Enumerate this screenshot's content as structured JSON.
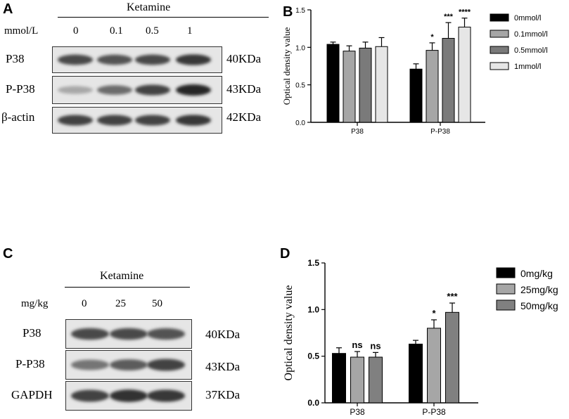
{
  "panels": {
    "a": {
      "letter": "A",
      "treatment": "Ketamine",
      "unit_label": "mmol/L",
      "lanes": [
        "0",
        "0.1",
        "0.5",
        "1"
      ],
      "rows": [
        {
          "label": "P38",
          "mw": "40KDa",
          "intensities": [
            0.8,
            0.75,
            0.8,
            0.9
          ]
        },
        {
          "label": "P-P38",
          "mw": "43KDa",
          "intensities": [
            0.25,
            0.6,
            0.85,
            1.0
          ]
        },
        {
          "label": "β-actin",
          "mw": "42KDa",
          "intensities": [
            0.85,
            0.85,
            0.85,
            0.9
          ]
        }
      ]
    },
    "b": {
      "letter": "B"
    },
    "c": {
      "letter": "C",
      "treatment": "Ketamine",
      "unit_label": "mg/kg",
      "lanes": [
        "0",
        "25",
        "50"
      ],
      "rows": [
        {
          "label": "P38",
          "mw": "40KDa",
          "intensities": [
            0.8,
            0.8,
            0.75
          ]
        },
        {
          "label": "P-P38",
          "mw": "43KDa",
          "intensities": [
            0.55,
            0.7,
            0.85
          ]
        },
        {
          "label": "GAPDH",
          "mw": "37KDa",
          "intensities": [
            0.85,
            0.95,
            0.9
          ]
        }
      ]
    },
    "d": {
      "letter": "D"
    }
  },
  "chart_data": [
    {
      "type": "bar",
      "ylabel": "Optical density value",
      "categories": [
        "P38",
        "P-P38"
      ],
      "ylim": [
        0,
        1.5
      ],
      "yticks": [
        "0.0",
        "0.5",
        "1.0",
        "1.5"
      ],
      "series": [
        {
          "name": "0mmol/l",
          "color": "#000000",
          "values": [
            1.04,
            0.71
          ],
          "errors": [
            0.03,
            0.07
          ],
          "sig": [
            "",
            ""
          ]
        },
        {
          "name": "0.1mmol/l",
          "color": "#a6a6a6",
          "values": [
            0.95,
            0.96
          ],
          "errors": [
            0.07,
            0.1
          ],
          "sig": [
            "",
            "*"
          ]
        },
        {
          "name": "0.5mmol/l",
          "color": "#7a7a7a",
          "values": [
            0.99,
            1.12
          ],
          "errors": [
            0.08,
            0.21
          ],
          "sig": [
            "",
            "***"
          ]
        },
        {
          "name": "1mmol/l",
          "color": "#e6e6e6",
          "values": [
            1.01,
            1.27
          ],
          "errors": [
            0.12,
            0.12
          ],
          "sig": [
            "",
            "****"
          ]
        }
      ],
      "legend": "right",
      "grid": false
    },
    {
      "type": "bar",
      "ylabel": "Optical density value",
      "categories": [
        "P38",
        "P-P38"
      ],
      "ylim": [
        0,
        1.5
      ],
      "yticks": [
        "0.0",
        "0.5",
        "1.0",
        "1.5"
      ],
      "series": [
        {
          "name": "0mg/kg",
          "color": "#000000",
          "values": [
            0.53,
            0.63
          ],
          "errors": [
            0.06,
            0.04
          ],
          "sig": [
            "",
            ""
          ]
        },
        {
          "name": "25mg/kg",
          "color": "#a6a6a6",
          "values": [
            0.49,
            0.8
          ],
          "errors": [
            0.06,
            0.09
          ],
          "sig": [
            "ns",
            "*"
          ]
        },
        {
          "name": "50mg/kg",
          "color": "#808080",
          "values": [
            0.49,
            0.97
          ],
          "errors": [
            0.05,
            0.1
          ],
          "sig": [
            "ns",
            "***"
          ]
        }
      ],
      "legend": "right",
      "grid": false
    }
  ]
}
